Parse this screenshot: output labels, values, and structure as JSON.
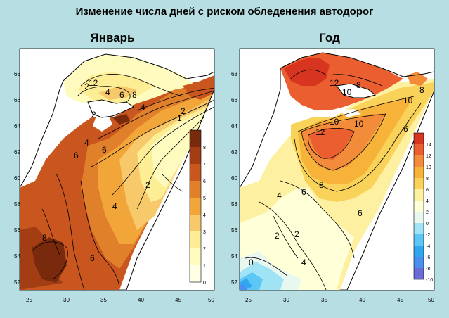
{
  "title": "Изменение числа дней с риском обледенения автодорог",
  "maps": [
    {
      "label": "Январь",
      "lat_ticks": [
        "52",
        "54",
        "56",
        "58",
        "60",
        "62",
        "64",
        "66",
        "68"
      ],
      "lon_ticks": [
        "25",
        "30",
        "35",
        "40",
        "45",
        "50"
      ],
      "legend_labels": [
        "0",
        "1",
        "2",
        "3",
        "4",
        "5",
        "6",
        "7",
        "8"
      ],
      "legend_colors": [
        "#ffffe6",
        "#fffbbf",
        "#fdee96",
        "#f8c96a",
        "#f2a63a",
        "#e1802a",
        "#c8561e",
        "#a33d14",
        "#7a2a0c"
      ],
      "contour_labels": [
        "2",
        "4",
        "6",
        "8",
        "12",
        "2",
        "4",
        "4",
        "6",
        "6",
        "8",
        "2",
        "4",
        "6",
        "2",
        "1"
      ]
    },
    {
      "label": "Год",
      "lat_ticks": [
        "52",
        "54",
        "56",
        "58",
        "60",
        "62",
        "64",
        "66",
        "68"
      ],
      "lon_ticks": [
        "25",
        "30",
        "35",
        "40",
        "45",
        "50"
      ],
      "legend_labels": [
        "-10",
        "-8",
        "-6",
        "-4",
        "-2",
        "0",
        "2",
        "4",
        "6",
        "8",
        "10",
        "12",
        "14"
      ],
      "legend_colors": [
        "#6b6bd6",
        "#4a8ef0",
        "#2fa8f0",
        "#5cc6f5",
        "#a0e3f5",
        "#e8f8ee",
        "#ffffd8",
        "#fdf0a0",
        "#f9d25a",
        "#f7b23a",
        "#f28c3a",
        "#ea5e30",
        "#d83520"
      ],
      "contour_labels": [
        "12",
        "10",
        "8",
        "10",
        "12",
        "10",
        "10",
        "8",
        "6",
        "6",
        "8",
        "6",
        "4",
        "2",
        "0",
        "4",
        "2"
      ]
    }
  ]
}
